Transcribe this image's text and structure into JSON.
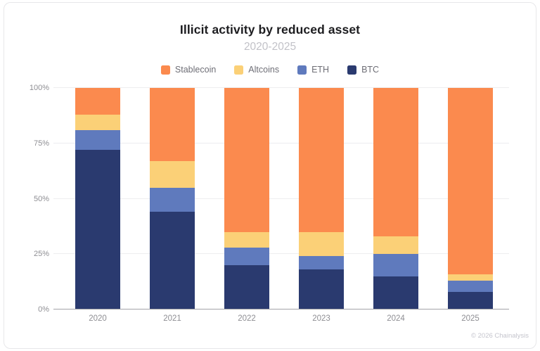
{
  "card": {
    "title": "Illicit activity by reduced asset",
    "subtitle": "2020-2025",
    "footer": "© 2026 Chainalysis"
  },
  "chart_data": {
    "type": "bar",
    "stacked": true,
    "normalized_to_percent": true,
    "title": "Illicit activity by reduced asset",
    "subtitle": "2020-2025",
    "categories": [
      "2020",
      "2021",
      "2022",
      "2023",
      "2024",
      "2025"
    ],
    "series": [
      {
        "name": "Stablecoin",
        "color": "#FB8A4E",
        "values": [
          12,
          33,
          65,
          65,
          67,
          84
        ]
      },
      {
        "name": "Altcoins",
        "color": "#FBD077",
        "values": [
          7,
          12,
          7,
          11,
          8,
          3
        ]
      },
      {
        "name": "ETH",
        "color": "#5F7ABD",
        "values": [
          9,
          11,
          8,
          6,
          10,
          5
        ]
      },
      {
        "name": "BTC",
        "color": "#2A3A6F",
        "values": [
          72,
          44,
          20,
          18,
          15,
          8
        ]
      }
    ],
    "stack_order_bottom_to_top": [
      "BTC",
      "ETH",
      "Altcoins",
      "Stablecoin"
    ],
    "xlabel": "",
    "ylabel": "",
    "ylim": [
      0,
      100
    ],
    "y_ticks": [
      "0%",
      "25%",
      "50%",
      "75%",
      "100%"
    ],
    "y_tick_values": [
      0,
      25,
      50,
      75,
      100
    ],
    "grid": true,
    "legend_position": "top",
    "colors": {
      "grid": "#ededef",
      "axis": "#a3a3a8",
      "tick_text": "#8e8e93",
      "title_text": "#1d1d20",
      "subtitle_text": "#c2c2c8"
    }
  }
}
